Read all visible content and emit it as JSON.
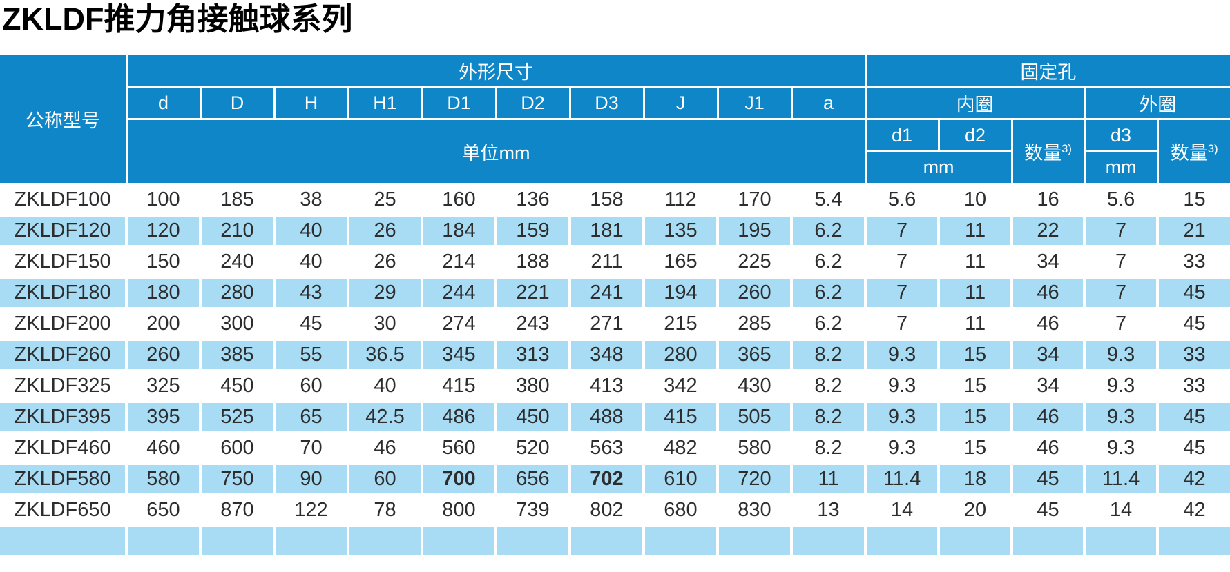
{
  "page_title": "ZKLDF推力角接触球系列",
  "colors": {
    "header_blue": "#0e86c8",
    "stripe_blue": "#a8dcf5",
    "text_dark": "#2d2d2d"
  },
  "table": {
    "header": {
      "model_col": "公称型号",
      "dims_group": "外形尺寸",
      "holes_group": "固定孔",
      "dim_cols": [
        "d",
        "D",
        "H",
        "H1",
        "D1",
        "D2",
        "D3",
        "J",
        "J1",
        "a"
      ],
      "unit_label": "单位mm",
      "inner_ring": "内圈",
      "outer_ring": "外圈",
      "d1": "d1",
      "d2": "d2",
      "d3": "d3",
      "qty_label": "数量",
      "qty_sup": "3)",
      "mm_inner": "mm",
      "mm_outer": "mm"
    },
    "rows": [
      {
        "cells": [
          "ZKLDF100",
          "100",
          "185",
          "38",
          "25",
          "160",
          "136",
          "158",
          "112",
          "170",
          "5.4",
          "5.6",
          "10",
          "16",
          "5.6",
          "15"
        ]
      },
      {
        "cells": [
          "ZKLDF120",
          "120",
          "210",
          "40",
          "26",
          "184",
          "159",
          "181",
          "135",
          "195",
          "6.2",
          "7",
          "11",
          "22",
          "7",
          "21"
        ]
      },
      {
        "cells": [
          "ZKLDF150",
          "150",
          "240",
          "40",
          "26",
          "214",
          "188",
          "211",
          "165",
          "225",
          "6.2",
          "7",
          "11",
          "34",
          "7",
          "33"
        ]
      },
      {
        "cells": [
          "ZKLDF180",
          "180",
          "280",
          "43",
          "29",
          "244",
          "221",
          "241",
          "194",
          "260",
          "6.2",
          "7",
          "11",
          "46",
          "7",
          "45"
        ]
      },
      {
        "cells": [
          "ZKLDF200",
          "200",
          "300",
          "45",
          "30",
          "274",
          "243",
          "271",
          "215",
          "285",
          "6.2",
          "7",
          "11",
          "46",
          "7",
          "45"
        ]
      },
      {
        "cells": [
          "ZKLDF260",
          "260",
          "385",
          "55",
          "36.5",
          "345",
          "313",
          "348",
          "280",
          "365",
          "8.2",
          "9.3",
          "15",
          "34",
          "9.3",
          "33"
        ]
      },
      {
        "cells": [
          "ZKLDF325",
          "325",
          "450",
          "60",
          "40",
          "415",
          "380",
          "413",
          "342",
          "430",
          "8.2",
          "9.3",
          "15",
          "34",
          "9.3",
          "33"
        ]
      },
      {
        "cells": [
          "ZKLDF395",
          "395",
          "525",
          "65",
          "42.5",
          "486",
          "450",
          "488",
          "415",
          "505",
          "8.2",
          "9.3",
          "15",
          "46",
          "9.3",
          "45"
        ]
      },
      {
        "cells": [
          "ZKLDF460",
          "460",
          "600",
          "70",
          "46",
          "560",
          "520",
          "563",
          "482",
          "580",
          "8.2",
          "9.3",
          "15",
          "46",
          "9.3",
          "45"
        ]
      },
      {
        "cells": [
          "ZKLDF580",
          "580",
          "750",
          "90",
          "60",
          "700",
          "656",
          "702",
          "610",
          "720",
          "11",
          "11.4",
          "18",
          "45",
          "11.4",
          "42"
        ],
        "bold": [
          5,
          7
        ]
      },
      {
        "cells": [
          "ZKLDF650",
          "650",
          "870",
          "122",
          "78",
          "800",
          "739",
          "802",
          "680",
          "830",
          "13",
          "14",
          "20",
          "45",
          "14",
          "42"
        ]
      },
      {
        "cells": [
          "",
          "",
          "",
          "",
          "",
          "",
          "",
          "",
          "",
          "",
          "",
          "",
          "",
          "",
          "",
          ""
        ]
      }
    ]
  }
}
